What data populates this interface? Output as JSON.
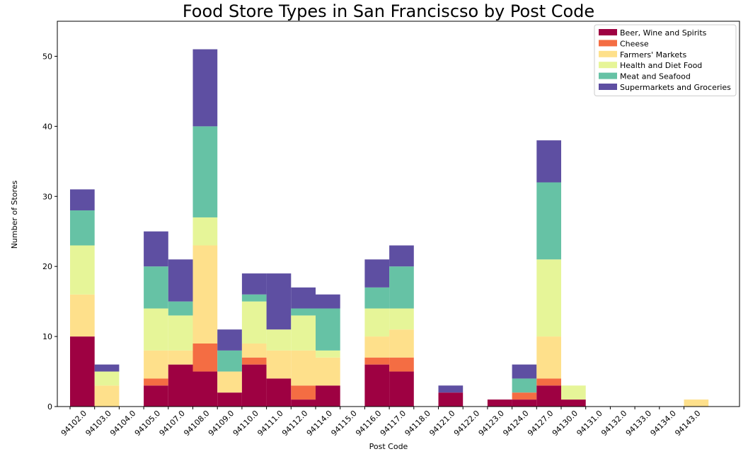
{
  "chart_data": {
    "type": "bar",
    "stacked": true,
    "title": "Food Store Types in San Franciscso by Post Code",
    "xlabel": "Post Code",
    "ylabel": "Number of Stores",
    "ylim": [
      0,
      55
    ],
    "yticks": [
      0,
      10,
      20,
      30,
      40,
      50
    ],
    "grid": false,
    "legend_position": "top-right",
    "categories": [
      "94102.0",
      "94103.0",
      "94104.0",
      "94105.0",
      "94107.0",
      "94108.0",
      "94109.0",
      "94110.0",
      "94111.0",
      "94112.0",
      "94114.0",
      "94115.0",
      "94116.0",
      "94117.0",
      "94118.0",
      "94121.0",
      "94122.0",
      "94123.0",
      "94124.0",
      "94127.0",
      "94130.0",
      "94131.0",
      "94132.0",
      "94133.0",
      "94134.0",
      "94143.0"
    ],
    "series": [
      {
        "name": "Beer, Wine and Spirits",
        "color": "#9e0142",
        "values": [
          10,
          0,
          0,
          3,
          6,
          5,
          2,
          6,
          4,
          1,
          3,
          0,
          6,
          5,
          0,
          2,
          0,
          1,
          1,
          3,
          1,
          0,
          0,
          0,
          0,
          0
        ]
      },
      {
        "name": "Cheese",
        "color": "#f46d43",
        "values": [
          0,
          0,
          0,
          1,
          0,
          4,
          0,
          1,
          0,
          2,
          0,
          0,
          1,
          2,
          0,
          0,
          0,
          0,
          1,
          1,
          0,
          0,
          0,
          0,
          0,
          0
        ]
      },
      {
        "name": "Farmers' Markets",
        "color": "#fee08b",
        "values": [
          6,
          3,
          0,
          4,
          2,
          14,
          3,
          2,
          4,
          5,
          4,
          0,
          3,
          4,
          0,
          0,
          0,
          0,
          0,
          6,
          0,
          0,
          0,
          0,
          0,
          1
        ]
      },
      {
        "name": "Health and Diet Food",
        "color": "#e6f598",
        "values": [
          7,
          2,
          0,
          6,
          5,
          4,
          0,
          6,
          3,
          5,
          1,
          0,
          4,
          3,
          0,
          0,
          0,
          0,
          0,
          11,
          2,
          0,
          0,
          0,
          0,
          0
        ]
      },
      {
        "name": "Meat and Seafood",
        "color": "#66c2a5",
        "values": [
          5,
          0,
          0,
          6,
          2,
          13,
          3,
          1,
          0,
          1,
          6,
          0,
          3,
          6,
          0,
          0,
          0,
          0,
          2,
          11,
          0,
          0,
          0,
          0,
          0,
          0
        ]
      },
      {
        "name": "Supermarkets and Groceries",
        "color": "#5e4fa2",
        "values": [
          3,
          1,
          0,
          5,
          6,
          11,
          3,
          3,
          8,
          3,
          2,
          0,
          4,
          3,
          0,
          1,
          0,
          0,
          2,
          6,
          0,
          0,
          0,
          0,
          0,
          0
        ]
      }
    ]
  }
}
